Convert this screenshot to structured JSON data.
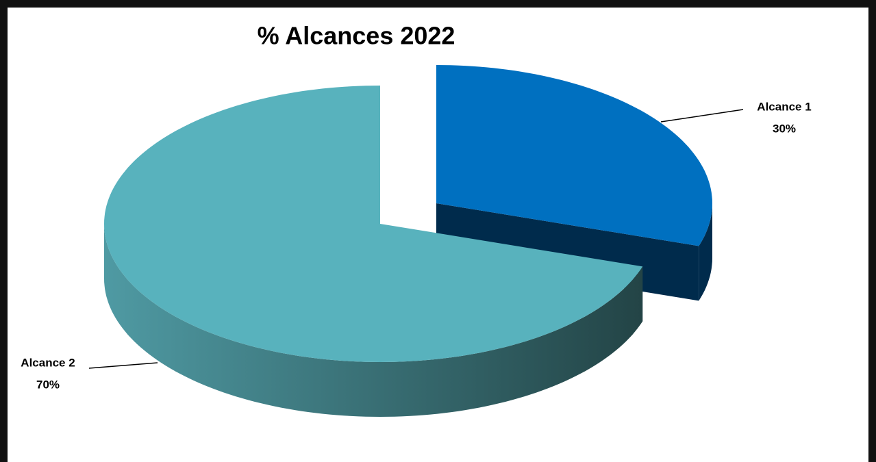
{
  "chart_data": {
    "type": "pie3d",
    "title": "% Alcances 2022",
    "categories": [
      "Alcance 1",
      "Alcance 2"
    ],
    "values": [
      30,
      70
    ],
    "value_labels": [
      "30%",
      "70%"
    ],
    "colors": [
      "#0070c0",
      "#58b2bd"
    ],
    "side_colors": [
      [
        "#002b4c",
        "#002b4c"
      ],
      [
        "#4f9aa3",
        "#234446"
      ]
    ]
  }
}
